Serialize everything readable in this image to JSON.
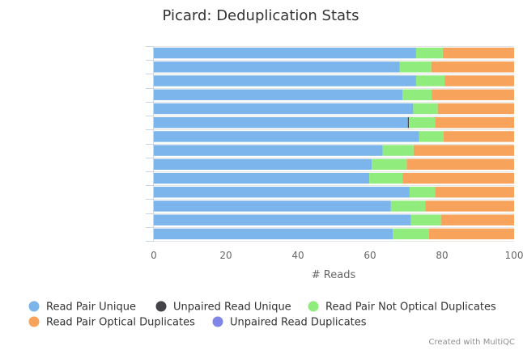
{
  "chart_data": {
    "type": "bar",
    "orientation": "horizontal",
    "stacked": true,
    "title": "Picard: Deduplication Stats",
    "xlabel": "# Reads",
    "ylabel": "",
    "xlim": [
      0,
      100
    ],
    "x_ticks": [
      "0",
      "20",
      "40",
      "60",
      "80",
      "100"
    ],
    "categories": [
      "",
      "",
      "",
      "",
      "",
      "",
      "",
      "",
      "",
      "",
      "",
      "",
      "",
      ""
    ],
    "series": [
      {
        "name": "Read Pair Unique",
        "color": "#7cb5ec",
        "values": [
          72.8,
          68.2,
          72.8,
          69.0,
          72.0,
          70.5,
          73.6,
          63.5,
          60.5,
          59.8,
          71.0,
          65.8,
          71.4,
          66.3
        ]
      },
      {
        "name": "Unpaired Read Unique",
        "color": "#434348",
        "values": [
          0.0,
          0.0,
          0.0,
          0.0,
          0.0,
          0.3,
          0.0,
          0.0,
          0.0,
          0.0,
          0.0,
          0.0,
          0.0,
          0.0
        ]
      },
      {
        "name": "Read Pair Not Optical Duplicates",
        "color": "#90ed7d",
        "values": [
          7.4,
          8.8,
          7.9,
          8.1,
          6.8,
          7.3,
          6.8,
          8.6,
          9.7,
          9.3,
          7.1,
          9.6,
          8.3,
          10.1
        ]
      },
      {
        "name": "Read Pair Optical Duplicates",
        "color": "#f7a35c",
        "values": [
          19.8,
          23.0,
          19.3,
          22.9,
          21.2,
          21.9,
          19.6,
          27.9,
          29.8,
          30.9,
          21.9,
          24.6,
          20.3,
          23.6
        ]
      },
      {
        "name": "Unpaired Read Duplicates",
        "color": "#8085e9",
        "values": [
          0.0,
          0.0,
          0.0,
          0.0,
          0.0,
          0.0,
          0.0,
          0.0,
          0.0,
          0.0,
          0.0,
          0.0,
          0.0,
          0.0
        ]
      }
    ],
    "grid": true,
    "legend_placement": "bottom"
  },
  "credit": "Created with MultiQC"
}
